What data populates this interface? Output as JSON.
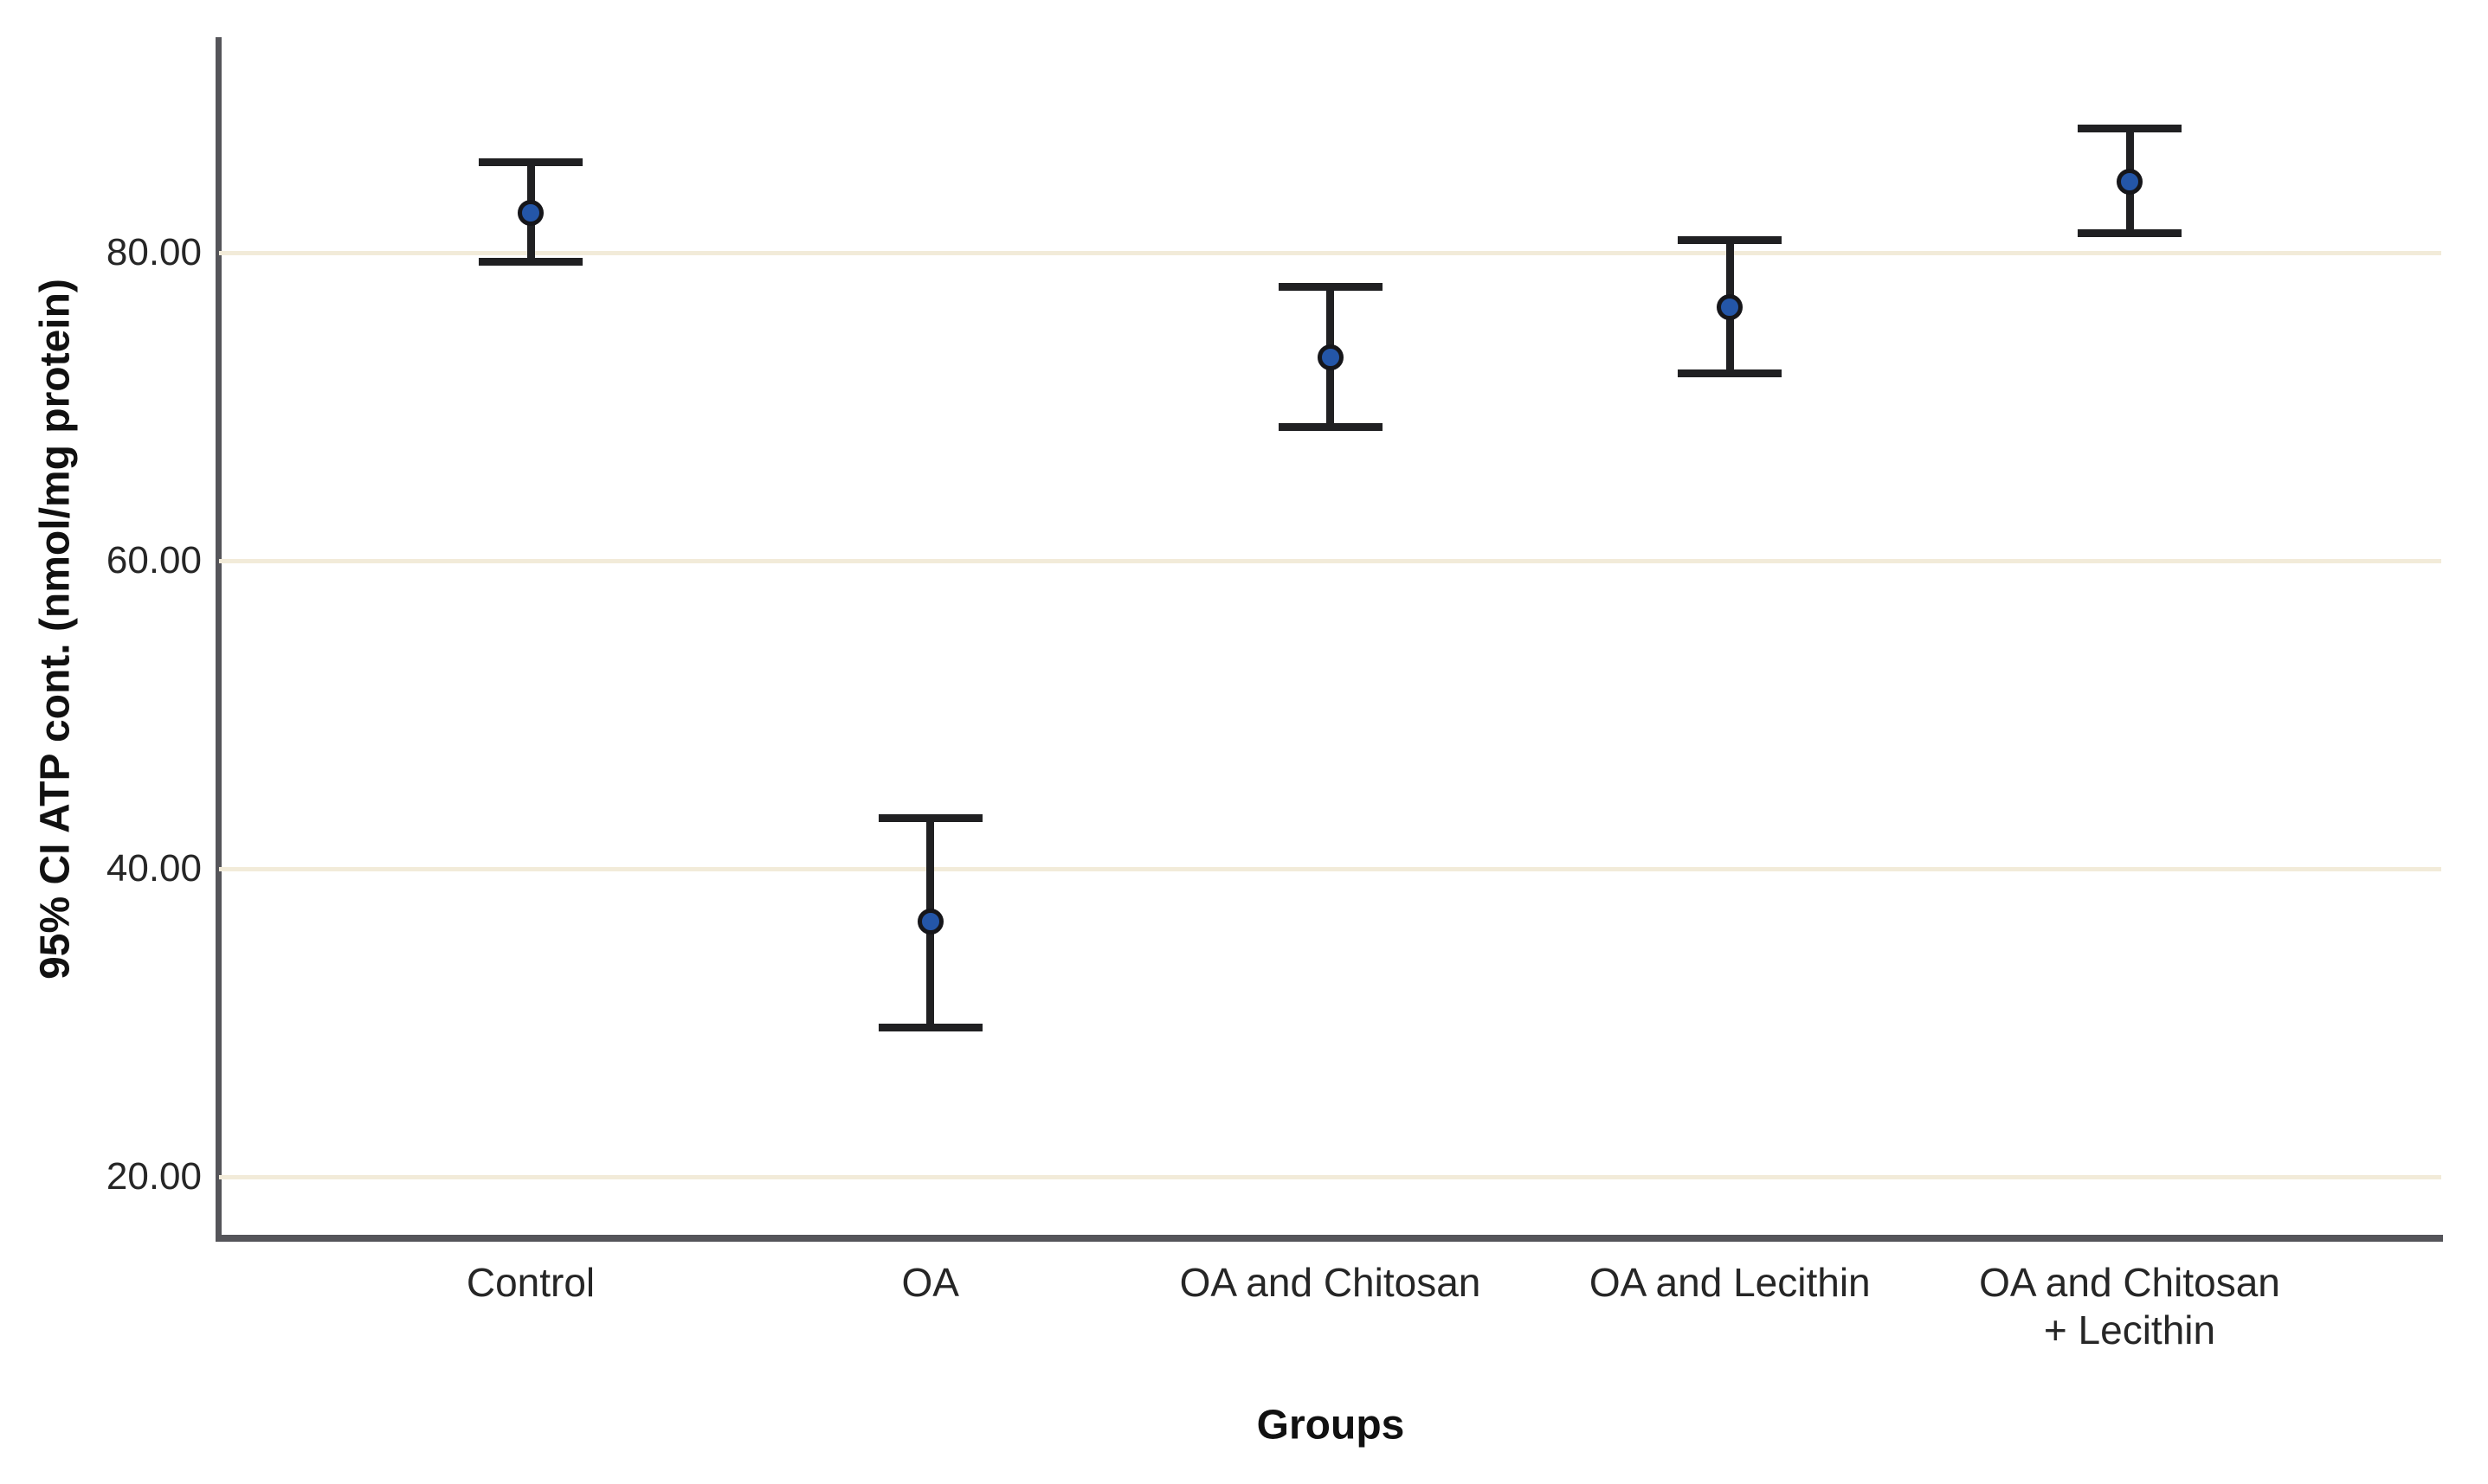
{
  "chart_data": {
    "type": "scatter",
    "subtype": "mean-errorbar-95ci",
    "title": "",
    "xlabel": "Groups",
    "ylabel": "95% CI ATP cont. (nmol/mg protein)",
    "legend": "none",
    "grid": "horizontal",
    "ylim": [
      16.25,
      94.0
    ],
    "yticks": [
      {
        "value": 80,
        "label": "80.00"
      },
      {
        "value": 60,
        "label": "60.00"
      },
      {
        "value": 40,
        "label": "40.00"
      },
      {
        "value": 20,
        "label": "20.00"
      }
    ],
    "categories": [
      "Control",
      "OA",
      "OA and Chitosan",
      "OA and Lecithin",
      "OA and Chitosan + Lecithin"
    ],
    "groups": [
      {
        "label": "Control",
        "label_lines": [
          "Control"
        ],
        "mean": 82.6,
        "ci_low": 79.4,
        "ci_high": 85.9
      },
      {
        "label": "OA",
        "label_lines": [
          "OA"
        ],
        "mean": 36.6,
        "ci_low": 29.7,
        "ci_high": 43.3
      },
      {
        "label": "OA and Chitosan",
        "label_lines": [
          "OA and Chitosan"
        ],
        "mean": 73.2,
        "ci_low": 68.7,
        "ci_high": 77.8
      },
      {
        "label": "OA and Lecithin",
        "label_lines": [
          "OA and Lecithin"
        ],
        "mean": 76.5,
        "ci_low": 72.2,
        "ci_high": 80.8
      },
      {
        "label": "OA and Chitosan + Lecithin",
        "label_lines": [
          "OA and Chitosan",
          "+ Lecithin"
        ],
        "mean": 84.6,
        "ci_low": 81.3,
        "ci_high": 88.1
      }
    ],
    "marker": "filled-circle"
  },
  "colors": {
    "background": "#ffffff",
    "axis_line": "#55555a",
    "gridline": "#f2ebd9",
    "error_bar": "#202022",
    "marker_fill": "#2456a8",
    "marker_stroke": "#16161a",
    "text": "#262626"
  }
}
